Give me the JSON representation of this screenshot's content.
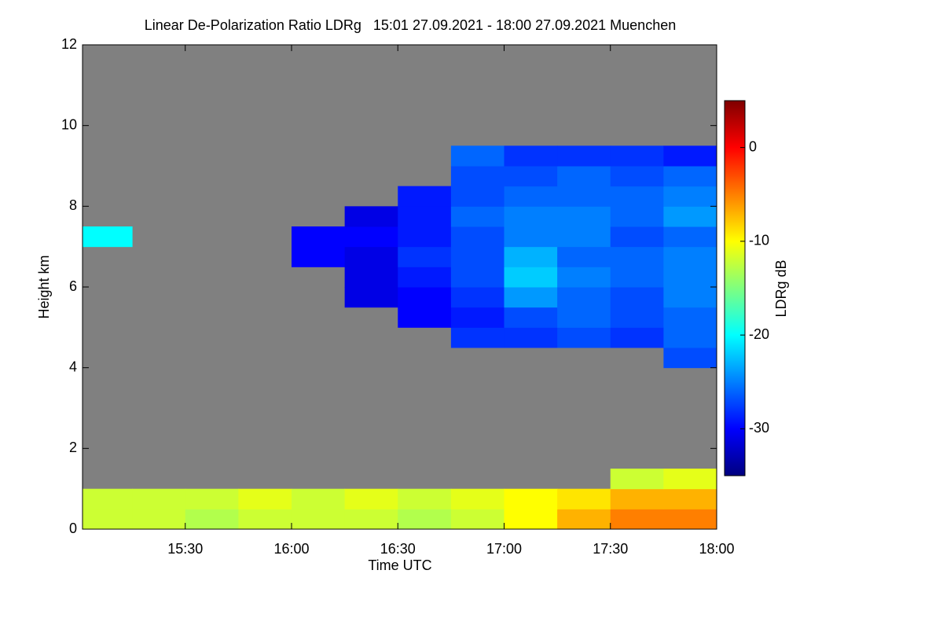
{
  "chart_data": {
    "type": "heatmap",
    "title": "Linear De-Polarization Ratio LDRg   15:01 27.09.2021 - 18:00 27.09.2021 Muenchen",
    "x_label": "Time UTC",
    "y_label": "Height km",
    "colorbar_label": "LDRg dB",
    "x": [
      "15:01",
      "15:15",
      "15:30",
      "15:45",
      "16:00",
      "16:15",
      "16:30",
      "16:45",
      "17:00",
      "17:15",
      "17:30",
      "17:45",
      "18:00"
    ],
    "y": [
      0,
      0.5,
      1,
      1.5,
      2,
      2.5,
      3,
      3.5,
      4,
      4.5,
      5,
      5.5,
      6,
      6.5,
      7,
      7.5,
      8,
      8.5,
      9,
      9.5,
      10,
      10.5,
      11,
      11.5,
      12
    ],
    "z": [
      [
        -12,
        -12,
        -13,
        -12,
        -12,
        -12,
        -13,
        -12,
        -10,
        -7,
        -5,
        -5
      ],
      [
        -12,
        -12,
        -12,
        -11,
        -12,
        -11,
        -12,
        -11,
        -10,
        -9,
        -7,
        -7
      ],
      [
        null,
        null,
        null,
        null,
        null,
        null,
        null,
        null,
        null,
        null,
        -12,
        -11
      ],
      [
        null,
        null,
        null,
        null,
        null,
        null,
        null,
        null,
        null,
        null,
        null,
        null
      ],
      [
        null,
        null,
        null,
        null,
        null,
        null,
        null,
        null,
        null,
        null,
        null,
        null
      ],
      [
        null,
        null,
        null,
        null,
        null,
        null,
        null,
        null,
        null,
        null,
        null,
        null
      ],
      [
        null,
        null,
        null,
        null,
        null,
        null,
        null,
        null,
        null,
        null,
        null,
        null
      ],
      [
        null,
        null,
        null,
        null,
        null,
        null,
        null,
        null,
        null,
        null,
        null,
        null
      ],
      [
        null,
        null,
        null,
        null,
        null,
        null,
        null,
        null,
        null,
        null,
        null,
        -27
      ],
      [
        null,
        null,
        null,
        null,
        null,
        null,
        null,
        -28,
        -28,
        -27,
        -28,
        -26
      ],
      [
        null,
        null,
        null,
        null,
        null,
        null,
        -30,
        -29,
        -27,
        -26,
        -27,
        -26
      ],
      [
        null,
        null,
        null,
        null,
        null,
        -31,
        -30,
        -28,
        -24,
        -26,
        -27,
        -25
      ],
      [
        null,
        null,
        null,
        null,
        null,
        -31,
        -29,
        -27,
        -22,
        -25,
        -26,
        -25
      ],
      [
        null,
        null,
        null,
        null,
        -30,
        -31,
        -28,
        -27,
        -23,
        -26,
        -26,
        -25
      ],
      [
        -20,
        null,
        null,
        null,
        -30,
        -30,
        -29,
        -27,
        -25,
        -25,
        -27,
        -26
      ],
      [
        null,
        null,
        null,
        null,
        null,
        -31,
        -29,
        -26,
        -25,
        -25,
        -26,
        -24
      ],
      [
        null,
        null,
        null,
        null,
        null,
        null,
        -29,
        -27,
        -26,
        -26,
        -26,
        -25
      ],
      [
        null,
        null,
        null,
        null,
        null,
        null,
        null,
        -27,
        -27,
        -26,
        -27,
        -26
      ],
      [
        null,
        null,
        null,
        null,
        null,
        null,
        null,
        -26,
        -28,
        -28,
        -28,
        -29
      ],
      [
        null,
        null,
        null,
        null,
        null,
        null,
        null,
        null,
        null,
        null,
        null,
        null
      ],
      [
        null,
        null,
        null,
        null,
        null,
        null,
        null,
        null,
        null,
        null,
        null,
        null
      ],
      [
        null,
        null,
        null,
        null,
        null,
        null,
        null,
        null,
        null,
        null,
        null,
        null
      ],
      [
        null,
        null,
        null,
        null,
        null,
        null,
        null,
        null,
        null,
        null,
        null,
        null
      ],
      [
        null,
        null,
        null,
        null,
        null,
        null,
        null,
        null,
        null,
        null,
        null,
        null
      ]
    ],
    "xlim": [
      "15:01",
      "18:00"
    ],
    "xticks": [
      "15:30",
      "16:00",
      "16:30",
      "17:00",
      "17:30",
      "18:00"
    ],
    "ylim": [
      0,
      12
    ],
    "yticks": [
      0,
      2,
      4,
      6,
      8,
      10,
      12
    ],
    "zlim": [
      -35,
      5
    ],
    "zticks": [
      0,
      -10,
      -20,
      -30
    ],
    "colorscale": [
      "#00007f",
      "#0000ff",
      "#007fff",
      "#00ffff",
      "#7fff7f",
      "#ffff00",
      "#ff7f00",
      "#ff0000",
      "#7f0000"
    ],
    "background_color": "#808080"
  }
}
